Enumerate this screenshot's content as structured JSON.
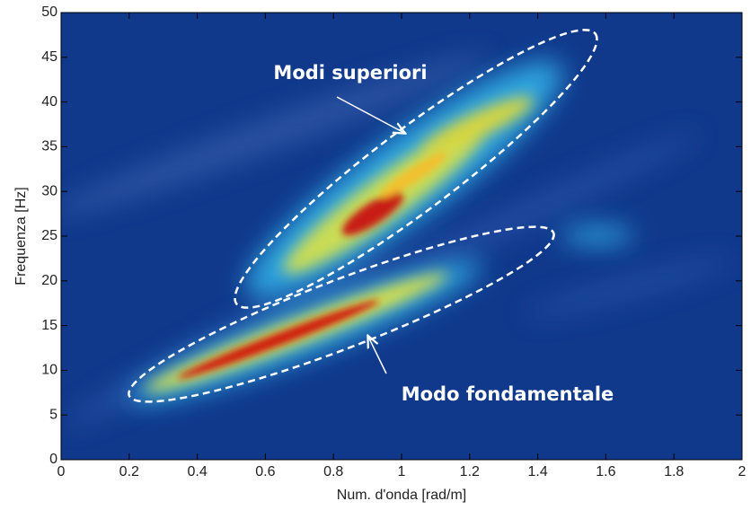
{
  "chart_data": {
    "type": "heatmap",
    "xlabel": "Num. d'onda [rad/m]",
    "ylabel": "Frequenza [Hz]",
    "xlim": [
      0,
      2
    ],
    "ylim": [
      0,
      50
    ],
    "xticks": [
      0,
      0.2,
      0.4,
      0.6,
      0.8,
      1,
      1.2,
      1.4,
      1.6,
      1.8,
      2
    ],
    "yticks": [
      0,
      5,
      10,
      15,
      20,
      25,
      30,
      35,
      40,
      45,
      50
    ],
    "annotations": [
      "Modi superiori",
      "Modo fondamentale"
    ]
  }
}
